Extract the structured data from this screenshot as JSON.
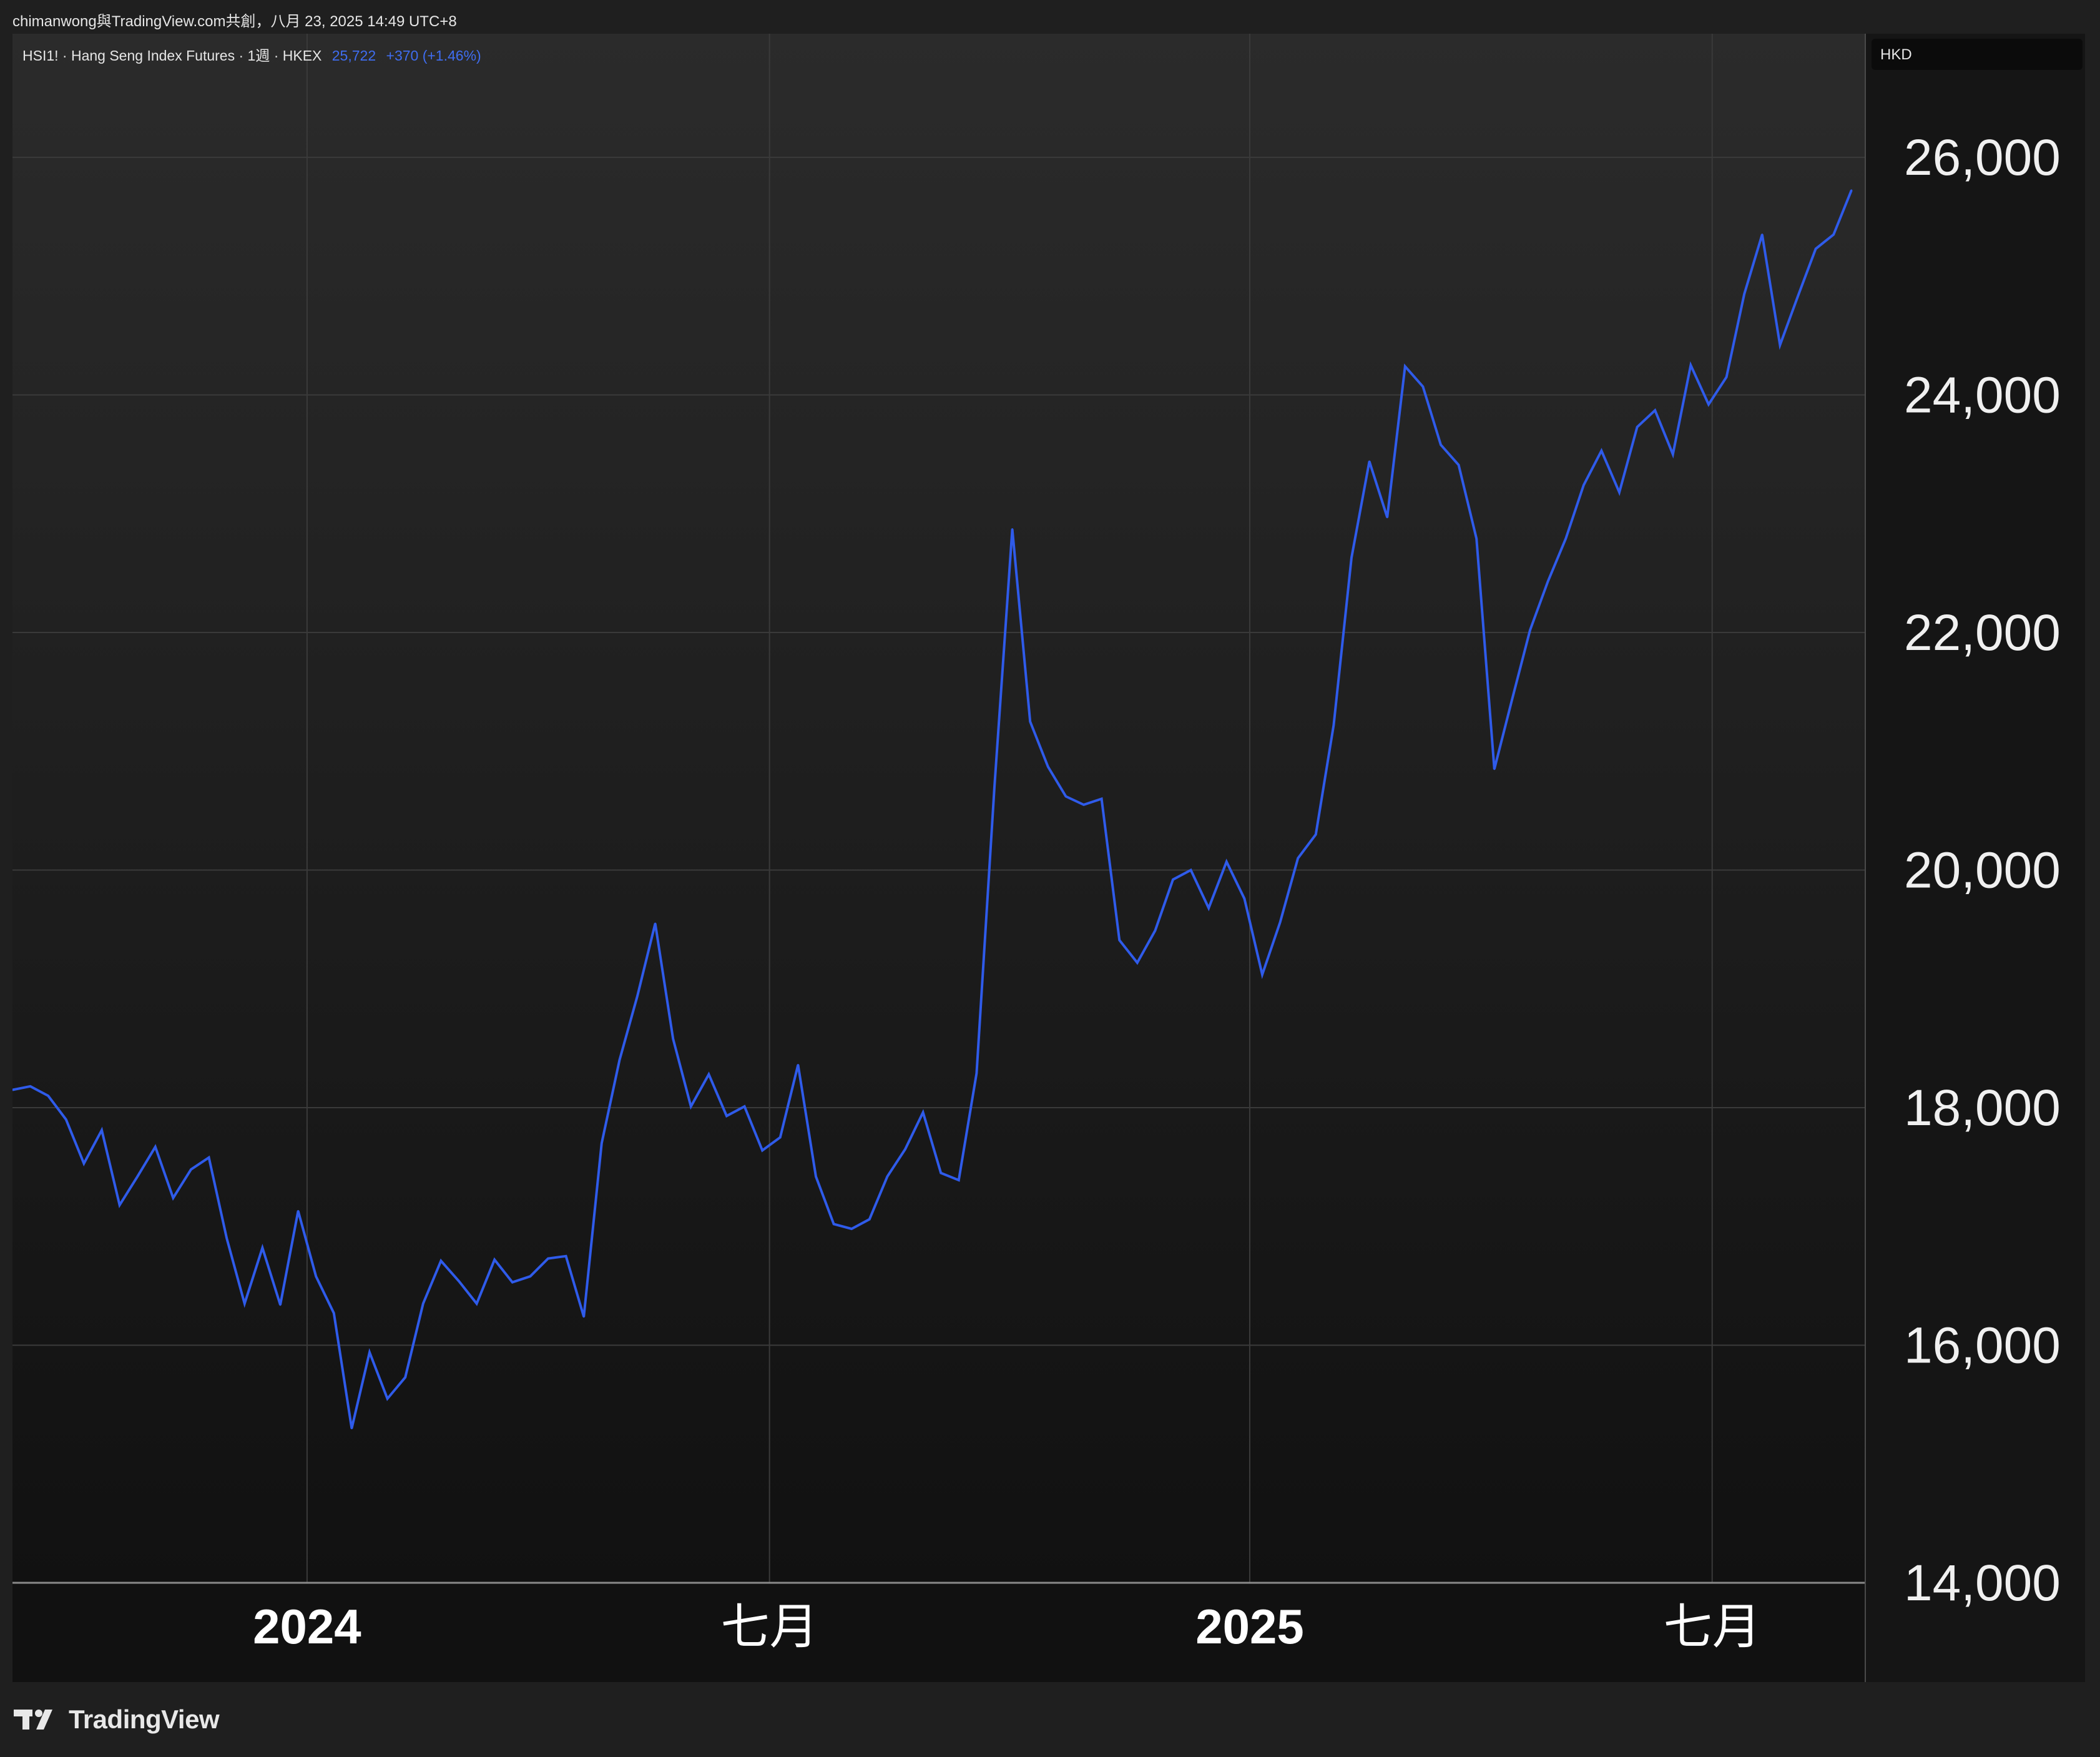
{
  "header": {
    "attribution": "chimanwong與TradingView.com共創，八月 23, 2025 14:49 UTC+8"
  },
  "symbol": {
    "description": "HSI1! · Hang Seng Index Futures · 1週 · HKEX",
    "last": "25,722",
    "change": "+370 (+1.46%)"
  },
  "currency": "HKD",
  "brand": {
    "name": "TradingView"
  },
  "colors": {
    "line": "#2f5bea",
    "accent_text": "#3f6df0",
    "grid": "#3a3a3a",
    "background": "#151515"
  },
  "chart_data": {
    "type": "line",
    "grid": true,
    "y_axis_position": "right",
    "ylim": [
      14000,
      26500
    ],
    "yticks": [
      14000,
      16000,
      18000,
      20000,
      22000,
      24000,
      26000
    ],
    "ytick_labels": [
      "14,000",
      "16,000",
      "18,000",
      "20,000",
      "22,000",
      "24,000",
      "26,000"
    ],
    "xticks": [
      {
        "label": "2024",
        "at_index": 16.5,
        "bold": true
      },
      {
        "label": "七月",
        "at_index": 42.4,
        "bold": false
      },
      {
        "label": "2025",
        "at_index": 69.3,
        "bold": true
      },
      {
        "label": "七月",
        "at_index": 95.2,
        "bold": false
      }
    ],
    "series": [
      {
        "values": [
          18150,
          18180,
          18100,
          17900,
          17530,
          17810,
          17180,
          17420,
          17670,
          17240,
          17480,
          17580,
          16900,
          16350,
          16820,
          16340,
          17130,
          16580,
          16270,
          15300,
          15940,
          15550,
          15730,
          16350,
          16710,
          16540,
          16350,
          16720,
          16530,
          16580,
          16730,
          16750,
          16240,
          17700,
          18400,
          18940,
          19550,
          18580,
          18010,
          18280,
          17930,
          18010,
          17640,
          17750,
          18360,
          17420,
          17020,
          16980,
          17060,
          17420,
          17650,
          17960,
          17450,
          17390,
          18290,
          20700,
          22870,
          21250,
          20870,
          20620,
          20550,
          20600,
          19410,
          19220,
          19490,
          19920,
          20000,
          19680,
          20070,
          19760,
          19120,
          19560,
          20100,
          20300,
          21220,
          22630,
          23440,
          22970,
          24240,
          24070,
          23580,
          23410,
          22790,
          20850,
          21440,
          22020,
          22430,
          22790,
          23240,
          23530,
          23180,
          23730,
          23870,
          23500,
          24250,
          23920,
          24150,
          24850,
          25350,
          24420,
          24830,
          25230,
          25350,
          25722
        ]
      }
    ]
  }
}
